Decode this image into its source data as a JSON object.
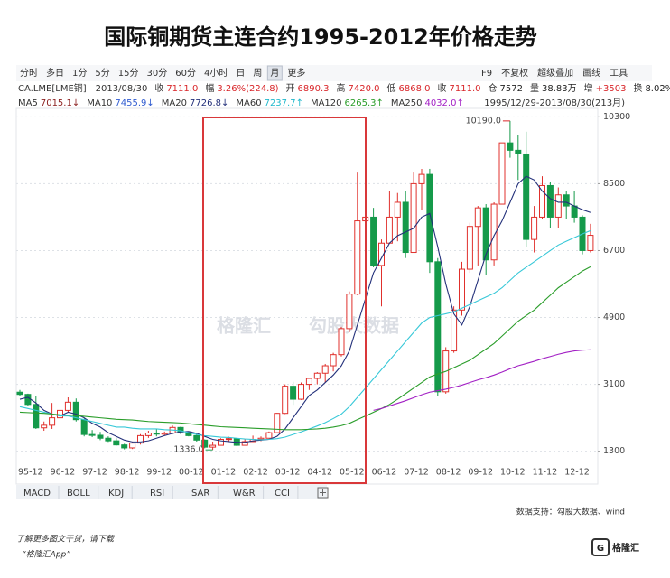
{
  "header": {
    "title": "国际铜期货主连合约1995-2012年价格走势",
    "toolbar_left": [
      "分时",
      "多日",
      "1分",
      "5分",
      "15分",
      "30分",
      "60分",
      "4小时",
      "日",
      "周",
      "月",
      "更多"
    ],
    "toolbar_right": [
      "F9",
      "不复权",
      "超级叠加",
      "画线",
      "工具"
    ],
    "symbol": "CA.LME[LME铜]",
    "date": "2013/08/30",
    "quote": [
      {
        "label": "收",
        "value": "7111.0",
        "color": "#d9262a"
      },
      {
        "label": "幅",
        "value": "3.26%(224.8)",
        "color": "#d9262a"
      },
      {
        "label": "开",
        "value": "6890.3",
        "color": "#d9262a"
      },
      {
        "label": "高",
        "value": "7420.0",
        "color": "#d9262a"
      },
      {
        "label": "低",
        "value": "6868.0",
        "color": "#d9262a"
      },
      {
        "label": "收",
        "value": "7111.0",
        "color": "#d9262a"
      },
      {
        "label": "仓",
        "value": "7572",
        "color": "#222222"
      },
      {
        "label": "量",
        "value": "38.83万",
        "color": "#222222"
      },
      {
        "label": "增",
        "value": "+3503",
        "color": "#d9262a"
      },
      {
        "label": "换",
        "value": "8.02%",
        "color": "#222222"
      }
    ],
    "ma_legend": [
      {
        "name": "MA5",
        "value": "7015.1↓",
        "color": "#8b1f1f"
      },
      {
        "name": "MA10",
        "value": "7455.9↓",
        "color": "#2f5bd0"
      },
      {
        "name": "MA20",
        "value": "7726.8↓",
        "color": "#23307a"
      },
      {
        "name": "MA60",
        "value": "7237.7↑",
        "color": "#1fb8cc"
      },
      {
        "name": "MA120",
        "value": "6265.3↑",
        "color": "#2a9d2a"
      },
      {
        "name": "MA250",
        "value": "4032.0↑",
        "color": "#a21fc4"
      }
    ],
    "range": "1995/12/29-2013/08/30(213月)"
  },
  "tabs": [
    "MACD",
    "BOLL",
    "KDJ",
    "RSI",
    "SAR",
    "W&R",
    "CCI"
  ],
  "watermark": [
    "格隆汇",
    "勾股大数据"
  ],
  "footer": {
    "source": "数据支持：勾股大数据、wind",
    "promo": "了解更多图文干货，请下载",
    "app": "“格隆汇App”",
    "logo": "格隆汇"
  },
  "chart_data": {
    "type": "candlestick",
    "categories": [
      "95-12",
      null,
      null,
      null,
      "96-12",
      null,
      null,
      null,
      "97-12",
      null,
      null,
      null,
      "98-12",
      null,
      null,
      null,
      "99-12",
      null,
      null,
      null,
      "00-12",
      null,
      null,
      null,
      "01-12",
      null,
      null,
      null,
      "02-12",
      null,
      null,
      null,
      "03-12",
      null,
      null,
      null,
      "04-12",
      null,
      null,
      null,
      "05-12",
      null,
      null,
      null,
      "06-12",
      null,
      null,
      null,
      "07-12",
      null,
      null,
      null,
      "08-12",
      null,
      null,
      null,
      "09-12",
      null,
      null,
      null,
      "10-12",
      null,
      null,
      null,
      "11-12",
      null,
      null,
      null,
      "12-12",
      null,
      null,
      null
    ],
    "open": [
      2890,
      2830,
      2560,
      1930,
      2000,
      2200,
      2400,
      2620,
      2150,
      1750,
      1730,
      1650,
      1580,
      1470,
      1390,
      1520,
      1720,
      1790,
      1760,
      1790,
      1940,
      1820,
      1720,
      1600,
      1410,
      1460,
      1620,
      1640,
      1460,
      1560,
      1620,
      1650,
      1800,
      2320,
      3050,
      2700,
      3100,
      3260,
      3400,
      3600,
      3900,
      4600,
      5530,
      7500,
      7600,
      6300,
      6900,
      7600,
      8000,
      6650,
      8500,
      8750,
      6400,
      2900,
      4000,
      5100,
      6200,
      7350,
      7850,
      6450,
      7950,
      9600,
      9400,
      9300,
      7000,
      7600,
      8450,
      7600,
      8200,
      7900,
      7600,
      6700
    ],
    "high": [
      2950,
      2850,
      2780,
      2100,
      2600,
      2480,
      2750,
      2720,
      2180,
      1870,
      1820,
      1700,
      1650,
      1500,
      1560,
      1760,
      1850,
      1900,
      1830,
      1990,
      1960,
      1840,
      1750,
      1620,
      1560,
      1650,
      1690,
      1660,
      1620,
      1720,
      1700,
      1830,
      2330,
      3100,
      3170,
      3150,
      3280,
      3430,
      3650,
      3950,
      4650,
      5600,
      8800,
      8200,
      7850,
      7000,
      8300,
      8250,
      8300,
      8800,
      8900,
      8900,
      6500,
      4100,
      5200,
      6400,
      7450,
      7900,
      7950,
      8000,
      9600,
      10190,
      9800,
      9900,
      7900,
      8700,
      8550,
      8400,
      8300,
      8300,
      7650,
      7420
    ],
    "low": [
      2790,
      2520,
      1900,
      1850,
      1900,
      2180,
      2350,
      2100,
      1700,
      1680,
      1600,
      1550,
      1450,
      1350,
      1360,
      1480,
      1660,
      1700,
      1720,
      1760,
      1760,
      1700,
      1560,
      1380,
      1336,
      1450,
      1550,
      1440,
      1450,
      1550,
      1570,
      1640,
      1780,
      2300,
      2550,
      2680,
      2950,
      3100,
      3150,
      3450,
      3850,
      4500,
      5500,
      7100,
      6250,
      5200,
      6900,
      6950,
      6500,
      6650,
      7800,
      6100,
      2800,
      2850,
      3950,
      4950,
      6100,
      6300,
      6050,
      6300,
      7950,
      9200,
      8600,
      6800,
      6650,
      7550,
      7300,
      7300,
      7550,
      7450,
      6600,
      6650
    ],
    "close": [
      2830,
      2560,
      1930,
      2000,
      2200,
      2400,
      2620,
      2150,
      1750,
      1730,
      1650,
      1580,
      1470,
      1390,
      1520,
      1720,
      1790,
      1760,
      1790,
      1940,
      1820,
      1720,
      1600,
      1410,
      1460,
      1620,
      1640,
      1460,
      1560,
      1620,
      1650,
      1800,
      2320,
      3050,
      2700,
      3100,
      3260,
      3400,
      3600,
      3900,
      4600,
      5530,
      7500,
      7600,
      6300,
      6900,
      7600,
      8000,
      6650,
      8500,
      8750,
      6400,
      2900,
      4000,
      5100,
      6200,
      7350,
      7850,
      6450,
      7950,
      9600,
      9400,
      9300,
      7000,
      7600,
      8450,
      7600,
      8200,
      7900,
      7600,
      6700,
      7111
    ],
    "up_color": "#e0302c",
    "down_color": "#159a4a",
    "series": [
      {
        "name": "MA20",
        "color": "#23307a",
        "values": [
          2700,
          2750,
          2600,
          2400,
          2300,
          2250,
          2350,
          2300,
          2200,
          2050,
          1950,
          1800,
          1700,
          1600,
          1550,
          1550,
          1580,
          1650,
          1720,
          1780,
          1820,
          1830,
          1780,
          1700,
          1620,
          1580,
          1560,
          1540,
          1540,
          1580,
          1600,
          1620,
          1700,
          1900,
          2200,
          2500,
          2800,
          2950,
          3150,
          3350,
          3600,
          4000,
          4700,
          5400,
          6100,
          6500,
          6900,
          7100,
          7200,
          7300,
          7600,
          7700,
          6800,
          5800,
          5000,
          4700,
          5200,
          5900,
          6600,
          7100,
          7500,
          8000,
          8500,
          8700,
          8600,
          8300,
          8100,
          8000,
          8000,
          7900,
          7800,
          7727
        ]
      },
      {
        "name": "MA60",
        "color": "#37c8d8",
        "values": [
          2500,
          2450,
          2400,
          2350,
          2300,
          2250,
          2250,
          2200,
          2150,
          2100,
          2050,
          2000,
          1950,
          1950,
          1920,
          1900,
          1900,
          1900,
          1880,
          1870,
          1850,
          1800,
          1750,
          1720,
          1700,
          1680,
          1670,
          1650,
          1630,
          1620,
          1610,
          1620,
          1640,
          1680,
          1750,
          1820,
          1900,
          1980,
          2070,
          2180,
          2300,
          2500,
          2750,
          3000,
          3250,
          3500,
          3750,
          4000,
          4250,
          4500,
          4750,
          4900,
          4950,
          5000,
          5050,
          5150,
          5250,
          5350,
          5450,
          5550,
          5700,
          5900,
          6100,
          6250,
          6400,
          6550,
          6700,
          6850,
          6950,
          7050,
          7150,
          7237
        ]
      },
      {
        "name": "MA120",
        "color": "#2a9d2a",
        "values": [
          2350,
          2340,
          2330,
          2320,
          2300,
          2280,
          2270,
          2260,
          2240,
          2220,
          2200,
          2180,
          2160,
          2150,
          2140,
          2120,
          2100,
          2090,
          2080,
          2070,
          2060,
          2040,
          2020,
          2000,
          1980,
          1960,
          1950,
          1940,
          1930,
          1920,
          1910,
          1900,
          1890,
          1880,
          1880,
          1880,
          1890,
          1900,
          1920,
          1950,
          1990,
          2050,
          2150,
          2250,
          2350,
          2450,
          2560,
          2700,
          2850,
          3000,
          3150,
          3300,
          3380,
          3450,
          3550,
          3650,
          3750,
          3900,
          4050,
          4200,
          4400,
          4600,
          4800,
          4950,
          5100,
          5300,
          5500,
          5700,
          5850,
          6000,
          6150,
          6265
        ]
      },
      {
        "name": "MA250",
        "color": "#a21fc4",
        "values": [
          null,
          null,
          null,
          null,
          null,
          null,
          null,
          null,
          null,
          null,
          null,
          null,
          null,
          null,
          null,
          null,
          null,
          null,
          null,
          null,
          null,
          null,
          null,
          null,
          null,
          null,
          null,
          null,
          null,
          null,
          null,
          null,
          null,
          null,
          null,
          null,
          null,
          null,
          null,
          null,
          null,
          null,
          null,
          null,
          2400,
          2450,
          2520,
          2590,
          2660,
          2740,
          2820,
          2890,
          2930,
          2970,
          3020,
          3080,
          3150,
          3220,
          3280,
          3350,
          3430,
          3520,
          3600,
          3660,
          3720,
          3790,
          3850,
          3910,
          3960,
          4000,
          4020,
          4032
        ]
      }
    ],
    "annotations": [
      {
        "label": "10190.0",
        "value": 10190
      },
      {
        "label": "1336.0",
        "value": 1336
      }
    ],
    "ylim": [
      1000,
      10600
    ],
    "yticks": [
      1300,
      3100,
      4900,
      6700,
      8500,
      10300
    ],
    "grid": true
  }
}
